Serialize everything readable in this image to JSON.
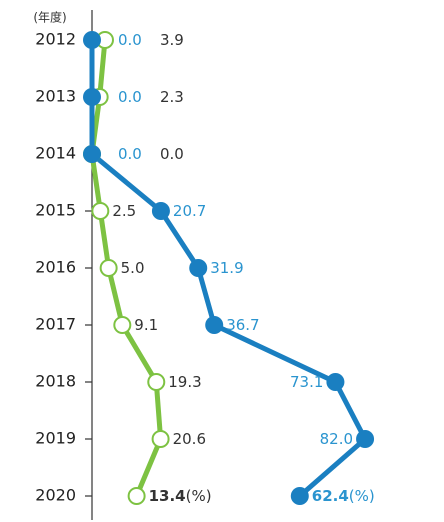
{
  "chart_data": {
    "type": "line",
    "orientation": "horizontal",
    "y_axis_label": "(年度)",
    "categories": [
      "2012",
      "2013",
      "2014",
      "2015",
      "2016",
      "2017",
      "2018",
      "2019",
      "2020"
    ],
    "unit": "(%)",
    "xlim": [
      0,
      100
    ],
    "series": [
      {
        "color": "#1a7fc1",
        "marker": "filled",
        "label_color": "#2a94cf",
        "values": [
          0.0,
          0.0,
          0.0,
          20.7,
          31.9,
          36.7,
          73.1,
          82.0,
          62.4
        ],
        "value_labels": [
          "0.0",
          "0.0",
          "0.0",
          "20.7",
          "31.9",
          "36.7",
          "73.1",
          "82.0",
          "62.4"
        ]
      },
      {
        "color": "#7dc242",
        "marker": "open",
        "label_color": "#333333",
        "values": [
          3.9,
          2.3,
          0.0,
          2.5,
          5.0,
          9.1,
          19.3,
          20.6,
          13.4
        ],
        "value_labels": [
          "3.9",
          "2.3",
          "0.0",
          "2.5",
          "5.0",
          "9.1",
          "19.3",
          "20.6",
          "13.4"
        ]
      }
    ]
  }
}
